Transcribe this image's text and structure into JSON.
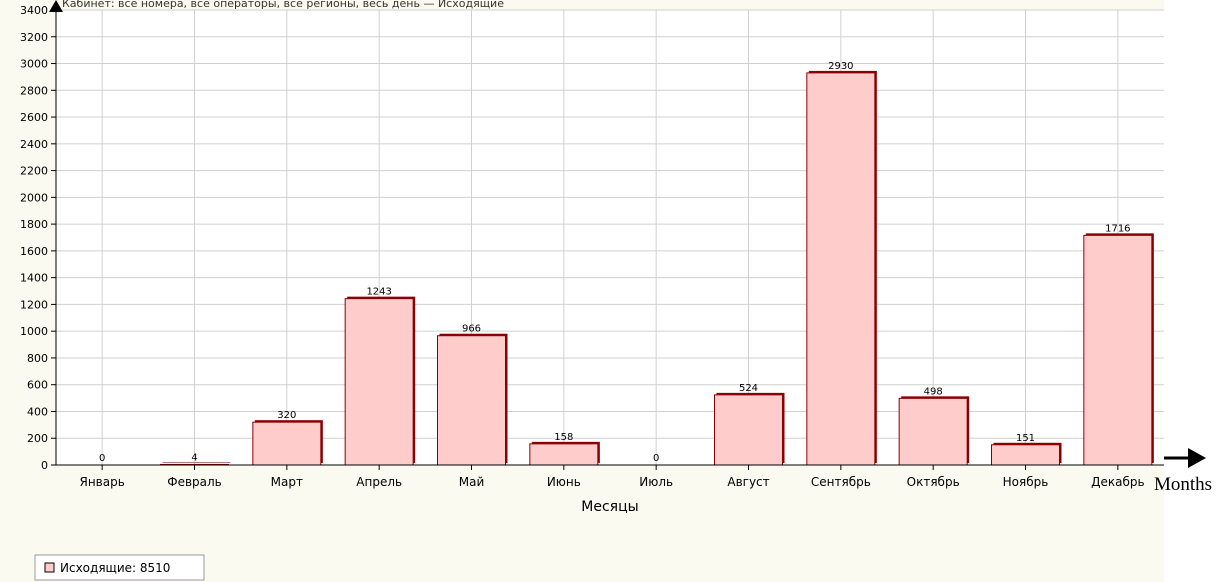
{
  "chart_data": {
    "type": "bar",
    "title": "Кабинет: все номера, все операторы, все регионы, весь день — Исходящие",
    "xlabel": "Месяцы",
    "ylabel": "",
    "ylim": [
      0,
      3400
    ],
    "yticks": [
      0,
      200,
      400,
      600,
      800,
      1000,
      1200,
      1400,
      1600,
      1800,
      2000,
      2200,
      2400,
      2600,
      2800,
      3000,
      3200,
      3400
    ],
    "categories": [
      "Январь",
      "Февраль",
      "Март",
      "Апрель",
      "Май",
      "Июнь",
      "Июль",
      "Август",
      "Сентябрь",
      "Октябрь",
      "Ноябрь",
      "Декабрь"
    ],
    "series": [
      {
        "name": "Исходящие: 8510",
        "values": [
          0,
          4,
          320,
          1243,
          966,
          158,
          0,
          524,
          2930,
          498,
          151,
          1716
        ],
        "color": "#ffcccc",
        "edge_color": "#8b0000"
      }
    ],
    "grid": true,
    "legend_position": "bottom-left",
    "background": "#fafaf0"
  },
  "annotations": {
    "x_arrow_label": "Months"
  }
}
